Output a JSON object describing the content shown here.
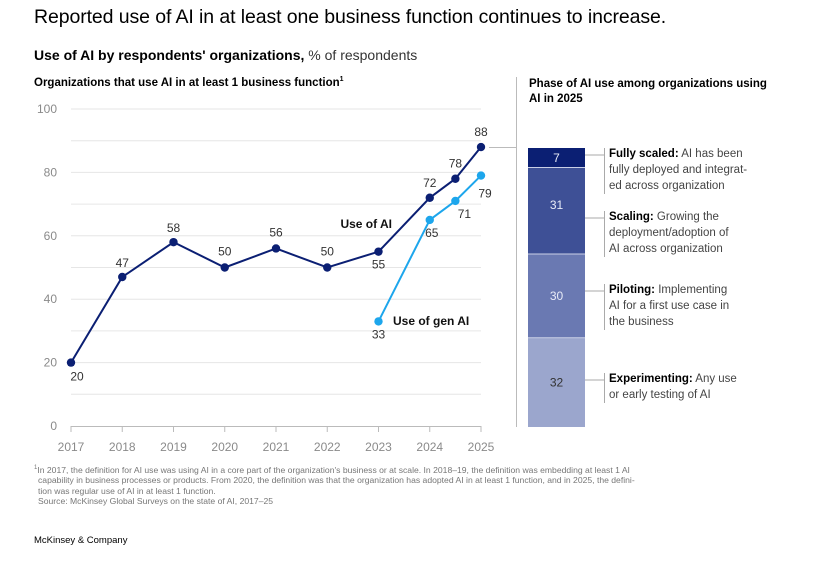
{
  "title": "Reported use of AI in at least one business function continues to increase.",
  "subtitle": {
    "bold": "Use of AI by respondents' organizations,",
    "unit": " % of respondents"
  },
  "left_heading": {
    "text": "Organizations that use AI in at least 1 business function",
    "footnote_mark": "1"
  },
  "right_heading": "Phase of AI use among organizations using AI in 2025",
  "chart_data": [
    {
      "type": "line",
      "title": "Organizations that use AI in at least 1 business function",
      "xlabel": "",
      "ylabel": "% of respondents",
      "ylim": [
        0,
        100
      ],
      "yticks": [
        "0",
        "20",
        "40",
        "60",
        "80",
        "100"
      ],
      "xticks": [
        "2017",
        "2018",
        "2019",
        "2020",
        "2021",
        "2022",
        "2023",
        "2024",
        "2025"
      ],
      "grid": true,
      "series": [
        {
          "name": "Use of AI",
          "color": "#0b1f73",
          "x": [
            2017,
            2018,
            2019,
            2020,
            2021,
            2022,
            2023,
            2024,
            2024.5,
            2025
          ],
          "values": [
            20,
            47,
            58,
            50,
            56,
            50,
            55,
            72,
            78,
            88
          ],
          "labels": [
            "20",
            "47",
            "58",
            "50",
            "56",
            "50",
            "55",
            "72",
            "78",
            "88"
          ]
        },
        {
          "name": "Use of gen AI",
          "color": "#1da6ec",
          "x": [
            2023,
            2024,
            2024.5,
            2025
          ],
          "values": [
            33,
            65,
            71,
            79
          ],
          "labels": [
            "33",
            "65",
            "71",
            "79"
          ]
        }
      ]
    },
    {
      "type": "bar",
      "title": "Phase of AI use among organizations using AI in 2025",
      "stacked": true,
      "unit": "%",
      "segments": [
        {
          "name": "Fully scaled",
          "value": 7,
          "color": "#0b1f73",
          "desc": "AI has been fully deployed and integrated across organization",
          "label_lines": [
            "AI has been",
            "fully deployed and integrat-",
            "ed across organization"
          ]
        },
        {
          "name": "Scaling",
          "value": 31,
          "color": "#3e5096",
          "desc": "Growing the deployment/adoption of AI across organization",
          "label_lines": [
            "Growing the",
            "deployment/adoption of",
            "AI across organization"
          ]
        },
        {
          "name": "Piloting",
          "value": 30,
          "color": "#6a79b2",
          "desc": "Implementing AI for a first use case in the business",
          "label_lines": [
            "Implementing",
            "AI for a first use case in",
            "the business"
          ]
        },
        {
          "name": "Experimenting",
          "value": 32,
          "color": "#9ba6cd",
          "desc": "Any use or early testing of AI",
          "label_lines": [
            "Any use",
            "or early testing of AI"
          ]
        }
      ]
    }
  ],
  "footnote": {
    "mark": "1",
    "lines": [
      "In 2017, the definition for AI use was using AI in a core part of the organization's business or at scale. In 2018–19, the definition was embedding at least 1 AI",
      "capability in business processes or products. From 2020, the definition was that the organization has adopted AI in at least 1 function, and in 2025, the defini-",
      "tion was regular use of AI in at least 1 function."
    ],
    "source": "Source: McKinsey Global Surveys on the state of AI, 2017–25"
  },
  "brand": "McKinsey & Company"
}
